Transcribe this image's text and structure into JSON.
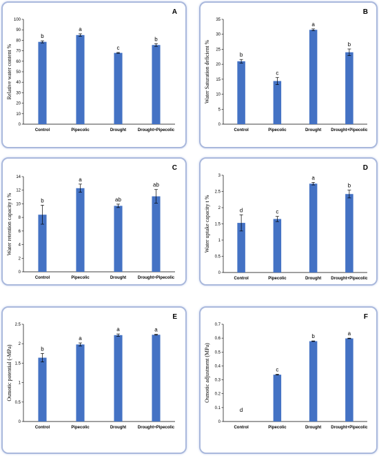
{
  "bar_color": "#4472c4",
  "border_color": "#a9b8dc",
  "chart_data": [
    {
      "type": "bar",
      "panel_label": "A",
      "categories": [
        "Control",
        "Pipecolic",
        "Drought",
        "Drought+Pipecolic"
      ],
      "values": [
        78.5,
        85,
        68,
        75.5
      ],
      "errors": [
        1,
        1.2,
        0.4,
        1.3
      ],
      "letters": [
        "b",
        "a",
        "c",
        "b"
      ],
      "ylabel": "Relative water content %",
      "ylim": [
        0,
        100
      ],
      "yticks": [
        "0",
        "10",
        "20",
        "30",
        "40",
        "50",
        "60",
        "70",
        "80",
        "90",
        "100"
      ]
    },
    {
      "type": "bar",
      "panel_label": "B",
      "categories": [
        "Control",
        "Pipecolic",
        "Drought",
        "Drought+Pipecolic"
      ],
      "values": [
        21,
        14.4,
        31.5,
        24
      ],
      "errors": [
        0.6,
        1.2,
        0.3,
        1.1
      ],
      "letters": [
        "b",
        "c",
        "a",
        "b"
      ],
      "ylabel": "Water Saturation deficient %",
      "ylim": [
        0,
        35
      ],
      "yticks": [
        "0",
        "5",
        "10",
        "15",
        "20",
        "25",
        "30",
        "35"
      ]
    },
    {
      "type": "bar",
      "panel_label": "C",
      "categories": [
        "Control",
        "Pipecolic",
        "Drought",
        "Drought+Pipecolic"
      ],
      "values": [
        8.4,
        12.3,
        9.7,
        11.1
      ],
      "errors": [
        1.4,
        0.6,
        0.25,
        1
      ],
      "letters": [
        "b",
        "a",
        "ab",
        "ab"
      ],
      "ylabel": "Water retention capacity t %",
      "ylim": [
        0,
        14
      ],
      "yticks": [
        "0",
        "2",
        "4",
        "6",
        "8",
        "10",
        "12",
        "14"
      ]
    },
    {
      "type": "bar",
      "panel_label": "D",
      "categories": [
        "Control",
        "Pipecolic",
        "Drought",
        "Drought+Pipecolic"
      ],
      "values": [
        1.53,
        1.65,
        2.74,
        2.42
      ],
      "errors": [
        0.25,
        0.08,
        0.04,
        0.12
      ],
      "letters": [
        "d",
        "c",
        "a",
        "b"
      ],
      "ylabel": "Water uptake capacity t %",
      "ylim": [
        0,
        3
      ],
      "yticks": [
        "0",
        "0.5",
        "1",
        "1.5",
        "2",
        "2.5",
        "3"
      ]
    },
    {
      "type": "bar",
      "panel_label": "E",
      "categories": [
        "Control",
        "Pipecolic",
        "Drought",
        "Drought+Pipecolic"
      ],
      "values": [
        1.64,
        1.98,
        2.22,
        2.23
      ],
      "errors": [
        0.11,
        0.04,
        0.03,
        0.01
      ],
      "letters": [
        "b",
        "a",
        "a",
        "a"
      ],
      "ylabel": "Osmotic potential (-MPa)",
      "ylim": [
        0,
        2.5
      ],
      "yticks": [
        "0",
        "0.5",
        "1",
        "1.5",
        "2",
        "2.5"
      ]
    },
    {
      "type": "bar",
      "panel_label": "F",
      "categories": [
        "Control",
        "Pipecolic",
        "Drought",
        "Drought+Pipecolic"
      ],
      "values": [
        0,
        0.337,
        0.578,
        0.598
      ],
      "errors": [
        0,
        0.003,
        0.002,
        0.002
      ],
      "letters": [
        "d",
        "c",
        "b",
        "a"
      ],
      "ylabel": "Osmotic adjustment (MPa)",
      "ylim": [
        0,
        0.7
      ],
      "yticks": [
        "0",
        "0.1",
        "0.2",
        "0.3",
        "0.4",
        "0.5",
        "0.6",
        "0.7"
      ]
    }
  ]
}
